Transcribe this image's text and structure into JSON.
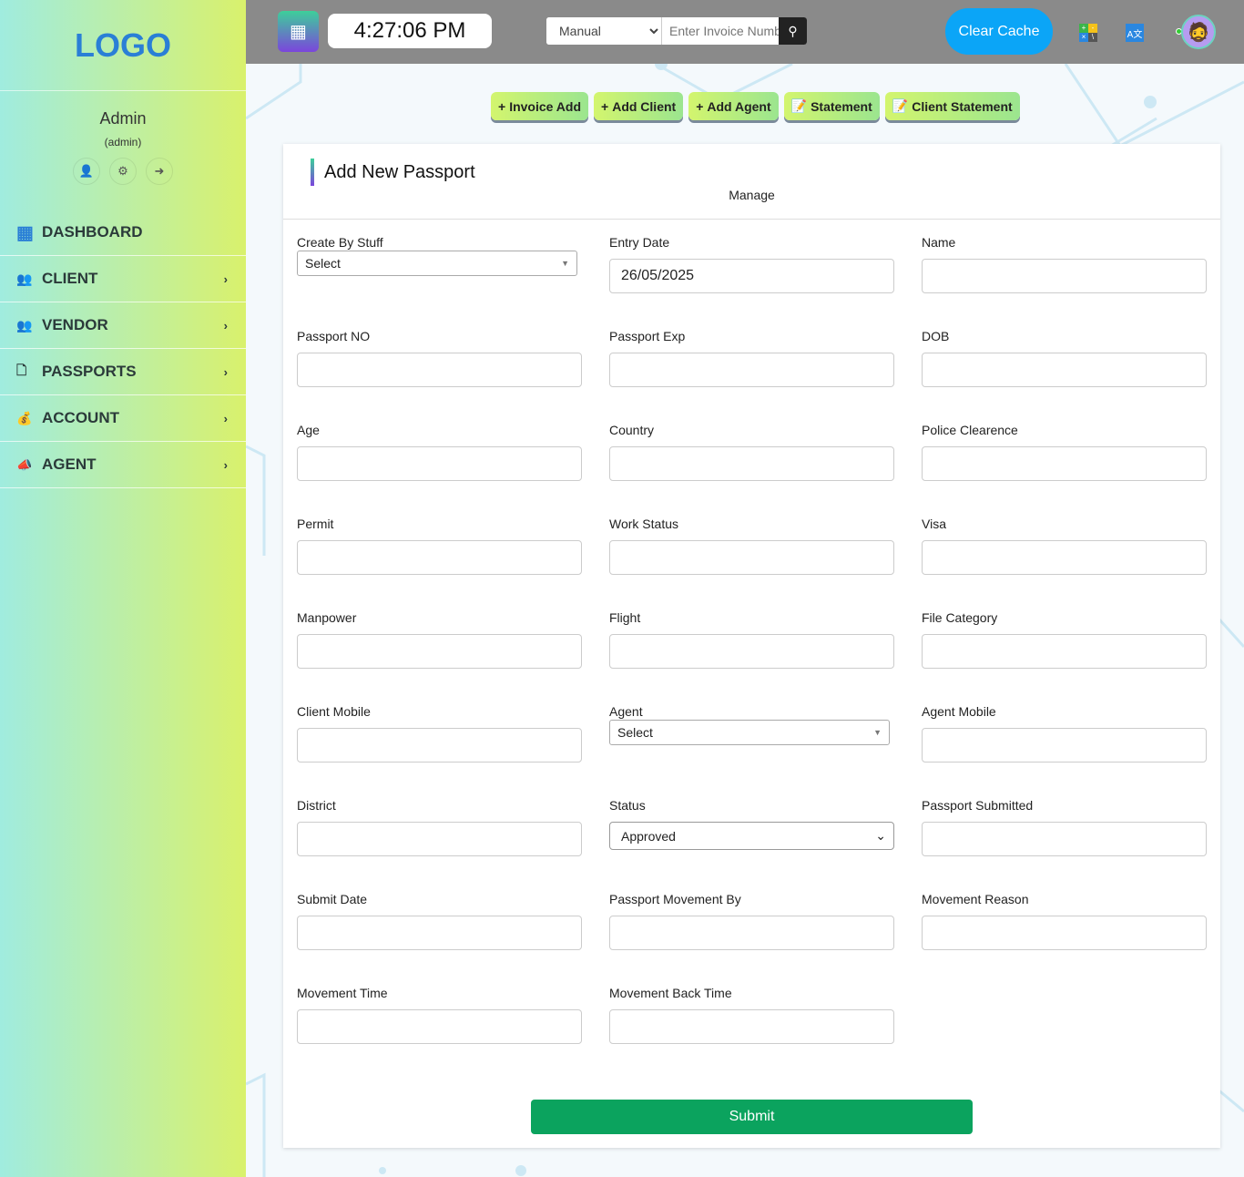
{
  "sidebar": {
    "logo": "LOGO",
    "user_name": "Admin",
    "user_role": "(admin)",
    "items": [
      {
        "label": "DASHBOARD",
        "icon": "dashboard-icon"
      },
      {
        "label": "CLIENT",
        "icon": "users-icon"
      },
      {
        "label": "VENDOR",
        "icon": "users-icon"
      },
      {
        "label": "PASSPORTS",
        "icon": "copy-icon"
      },
      {
        "label": "ACCOUNT",
        "icon": "money-bag-icon"
      },
      {
        "label": "AGENT",
        "icon": "megaphone-icon"
      }
    ]
  },
  "topbar": {
    "clock": "4:27:06 PM",
    "search_mode": "Manual",
    "search_placeholder": "Enter Invoice Number",
    "clear_cache": "Clear Cache"
  },
  "quick": [
    "Invoice Add",
    "Add Client",
    "Add Agent",
    "Statement",
    "Client Statement"
  ],
  "form": {
    "title": "Add New Passport",
    "manage": "Manage",
    "submit": "Submit",
    "fields": [
      {
        "label": "Create By Stuff",
        "value": "Select"
      },
      {
        "label": "Entry Date",
        "value": "26/05/2025"
      },
      {
        "label": "Name",
        "value": ""
      },
      {
        "label": "Passport NO",
        "value": ""
      },
      {
        "label": "Passport Exp",
        "value": ""
      },
      {
        "label": "DOB",
        "value": ""
      },
      {
        "label": "Age",
        "value": ""
      },
      {
        "label": "Country",
        "value": ""
      },
      {
        "label": "Police Clearence",
        "value": ""
      },
      {
        "label": "Permit",
        "value": ""
      },
      {
        "label": "Work Status",
        "value": ""
      },
      {
        "label": "Visa",
        "value": ""
      },
      {
        "label": "Manpower",
        "value": ""
      },
      {
        "label": "Flight",
        "value": ""
      },
      {
        "label": "File Category",
        "value": ""
      },
      {
        "label": "Client Mobile",
        "value": ""
      },
      {
        "label": "Agent",
        "value": "Select"
      },
      {
        "label": "Agent Mobile",
        "value": ""
      },
      {
        "label": "District",
        "value": ""
      },
      {
        "label": "Status",
        "value": "Approved"
      },
      {
        "label": "Passport Submitted",
        "value": ""
      },
      {
        "label": "Submit Date",
        "value": ""
      },
      {
        "label": "Passport Movement By",
        "value": ""
      },
      {
        "label": "Movement Reason",
        "value": ""
      },
      {
        "label": "Movement Time",
        "value": ""
      },
      {
        "label": "Movement Back Time",
        "value": ""
      }
    ]
  }
}
